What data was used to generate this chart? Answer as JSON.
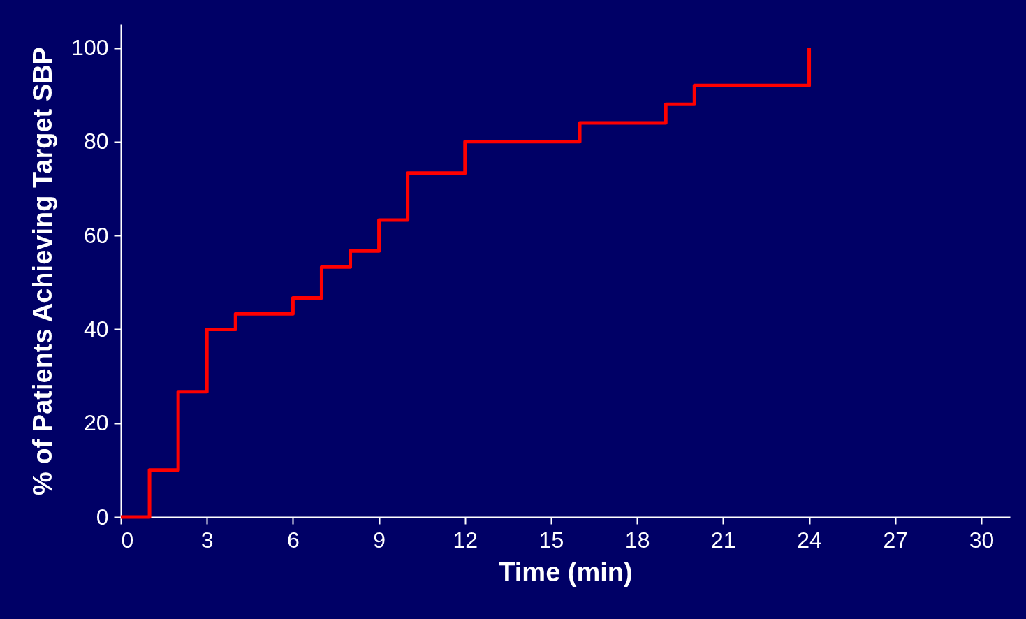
{
  "chart_data": {
    "type": "step",
    "xlabel": "Time (min)",
    "ylabel": "% of Patients Achieving Target SBP",
    "x": [
      0,
      1,
      2,
      3,
      4,
      6,
      7,
      8,
      9,
      10,
      12,
      16,
      19,
      20,
      24
    ],
    "values": [
      0,
      10,
      26.7,
      40,
      43.3,
      46.7,
      53.3,
      56.7,
      63.3,
      73.3,
      80,
      84,
      88,
      92,
      100
    ],
    "color": "#ff0000",
    "xlim": [
      0,
      31
    ],
    "ylim": [
      0,
      105
    ],
    "xticks": [
      0,
      3,
      6,
      9,
      12,
      15,
      18,
      21,
      24,
      27,
      30
    ],
    "yticks": [
      0,
      20,
      40,
      60,
      80,
      100
    ]
  }
}
